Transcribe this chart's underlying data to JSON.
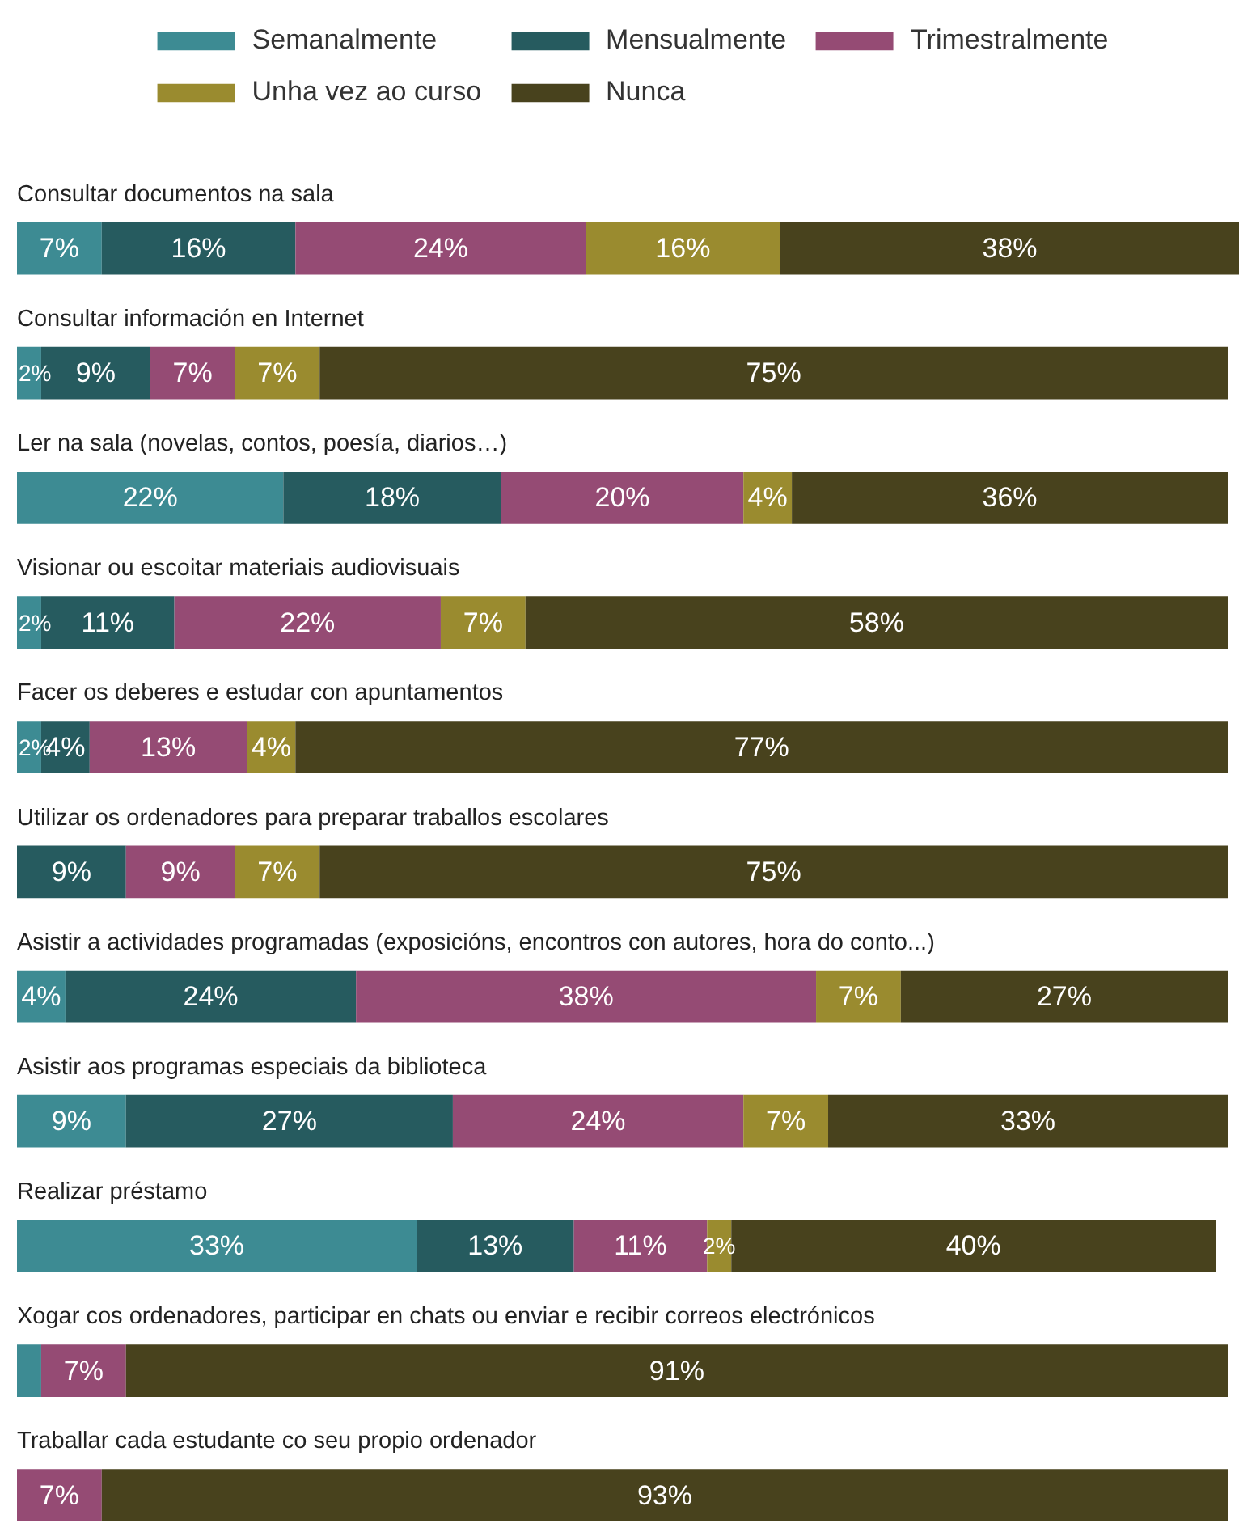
{
  "chart_data": {
    "type": "bar",
    "orientation": "horizontal",
    "stacked": true,
    "legend": "top",
    "categories": [
      "Consultar documentos na sala",
      "Consultar información en Internet",
      "Ler na sala (novelas, contos, poesía, diarios…)",
      "Visionar ou escoitar materiais audiovisuais",
      "Facer os deberes e estudar con apuntamentos",
      "Utilizar os ordenadores para preparar traballos escolares",
      "Asistir a actividades programadas (exposicións, encontros con autores, hora do conto...)",
      "Asistir aos programas especiais da biblioteca",
      "Realizar préstamo",
      "Xogar cos ordenadores, participar en chats ou enviar e recibir correos electrónicos",
      "Traballar cada estudante co seu propio ordenador"
    ],
    "series": [
      {
        "name": "Semanalmente",
        "color": "#3d8b93",
        "values": [
          7,
          2,
          22,
          2,
          2,
          0,
          4,
          9,
          33,
          2,
          0
        ],
        "value_labels": [
          "7%",
          "2%",
          "22%",
          "2%",
          "2%",
          null,
          "4%",
          "9%",
          "33%",
          null,
          null
        ]
      },
      {
        "name": "Mensualmente",
        "color": "#265b5f",
        "values": [
          16,
          9,
          18,
          11,
          4,
          9,
          24,
          27,
          13,
          0,
          0
        ],
        "value_labels": [
          "16%",
          "9%",
          "18%",
          "11%",
          "4%",
          "9%",
          "24%",
          "27%",
          "13%",
          null,
          null
        ]
      },
      {
        "name": "Trimestralmente",
        "color": "#954b74",
        "values": [
          24,
          7,
          20,
          22,
          13,
          9,
          38,
          24,
          11,
          7,
          7
        ],
        "value_labels": [
          "24%",
          "7%",
          "20%",
          "22%",
          "13%",
          "9%",
          "38%",
          "24%",
          "11%",
          "7%",
          "7%"
        ]
      },
      {
        "name": "Unha vez ao curso",
        "color": "#9a8b2f",
        "values": [
          16,
          7,
          4,
          7,
          4,
          7,
          7,
          7,
          2,
          0,
          0
        ],
        "value_labels": [
          "16%",
          "7%",
          "4%",
          "7%",
          "4%",
          "7%",
          "7%",
          "7%",
          "2%",
          null,
          null
        ]
      },
      {
        "name": "Nunca",
        "color": "#48421d",
        "values": [
          38,
          75,
          36,
          58,
          77,
          75,
          27,
          33,
          40,
          91,
          93
        ],
        "value_labels": [
          "38%",
          "75%",
          "36%",
          "58%",
          "77%",
          "75%",
          "27%",
          "33%",
          "40%",
          "91%",
          "93%"
        ]
      }
    ]
  }
}
